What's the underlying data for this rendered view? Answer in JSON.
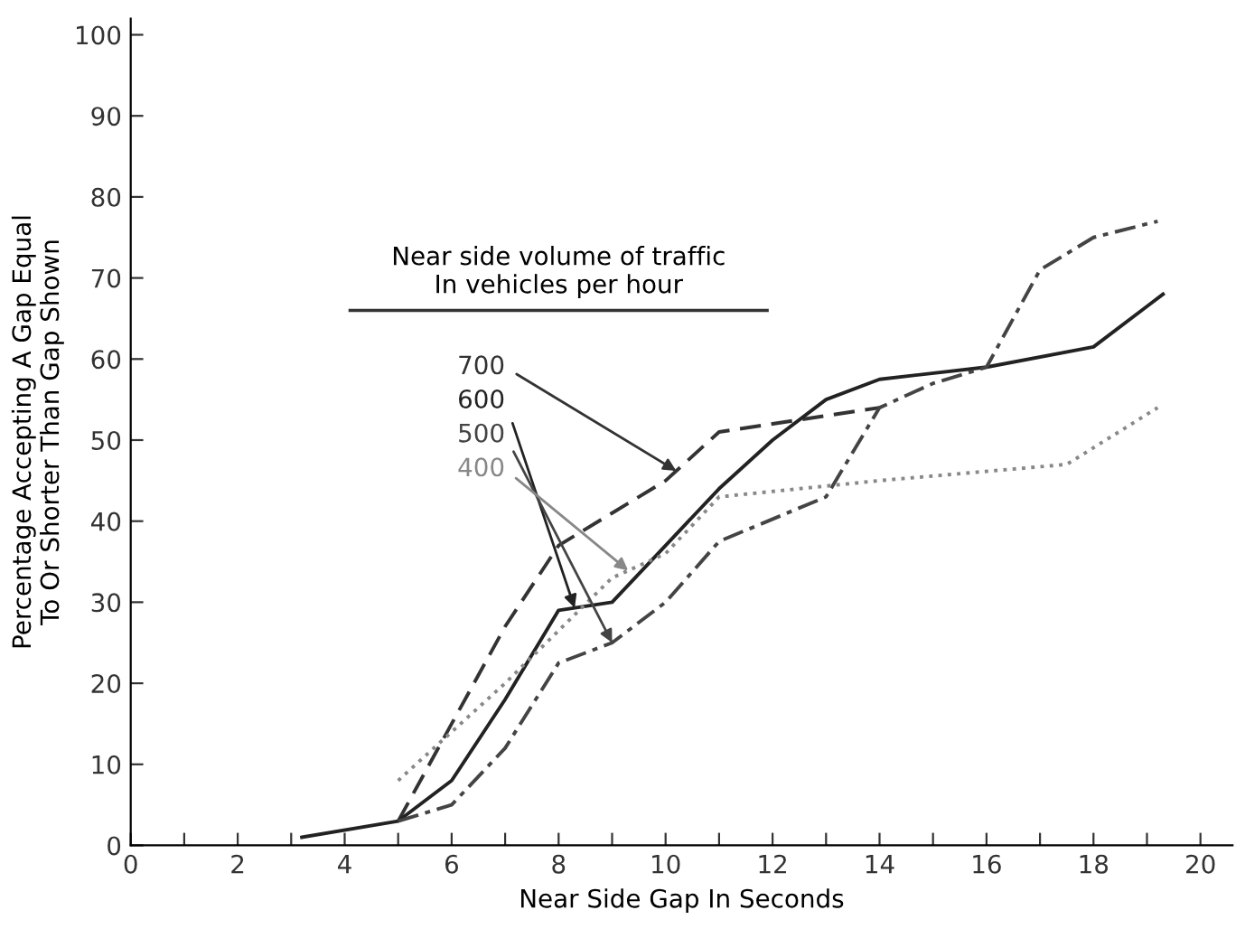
{
  "chart_data": {
    "type": "line",
    "xlabel": "Near Side Gap In Seconds",
    "ylabel": "Percentage Accepting A Gap Equal\nTo Or Shorter Than Gap Shown",
    "legend_title": "Near side volume of traffic\nIn vehicles per hour",
    "xlim": [
      0,
      20.6
    ],
    "ylim": [
      0,
      102
    ],
    "xticks": [
      0,
      {
        "value": 1,
        "label": null
      },
      2,
      {
        "value": 3,
        "label": null
      },
      4,
      {
        "value": 5,
        "label": null
      },
      6,
      {
        "value": 7,
        "label": null
      },
      8,
      {
        "value": 9,
        "label": null
      },
      10,
      {
        "value": 11,
        "label": null
      },
      12,
      {
        "value": 13,
        "label": null
      },
      14,
      {
        "value": 15,
        "label": null
      },
      16,
      {
        "value": 17,
        "label": null
      },
      18,
      {
        "value": 19,
        "label": null
      },
      20
    ],
    "yticks": [
      0,
      10,
      20,
      30,
      40,
      50,
      60,
      70,
      80,
      90,
      100
    ],
    "grid": false,
    "marker": "none",
    "series": [
      {
        "name": "700",
        "color": "#333333",
        "line_style": "dashed",
        "x": [
          5,
          6,
          7,
          8,
          9,
          10,
          11,
          14
        ],
        "values": [
          3,
          15,
          27,
          37,
          41,
          45,
          51,
          54
        ]
      },
      {
        "name": "600",
        "color": "#222222",
        "line_style": "solid",
        "x": [
          3.2,
          5,
          6,
          7,
          8,
          9,
          10,
          11,
          12,
          13,
          14,
          16,
          18,
          19.3
        ],
        "values": [
          1,
          3,
          8,
          18,
          29,
          30,
          37,
          44,
          50,
          55,
          57.5,
          59,
          61.5,
          68
        ]
      },
      {
        "name": "500",
        "color": "#444444",
        "line_style": "dashdot",
        "x": [
          5,
          6,
          7,
          8,
          9,
          10,
          11,
          13,
          14,
          15,
          16,
          17,
          18,
          19.2
        ],
        "values": [
          3,
          5,
          12,
          22.5,
          25,
          30,
          37.5,
          43,
          54,
          57,
          59,
          71,
          75,
          77
        ]
      },
      {
        "name": "400",
        "color": "#888888",
        "line_style": "dotted",
        "x": [
          5,
          7,
          9,
          10,
          11,
          14,
          17.5,
          19.2
        ],
        "values": [
          8,
          20,
          33,
          36,
          43,
          45,
          47,
          54
        ]
      }
    ]
  }
}
